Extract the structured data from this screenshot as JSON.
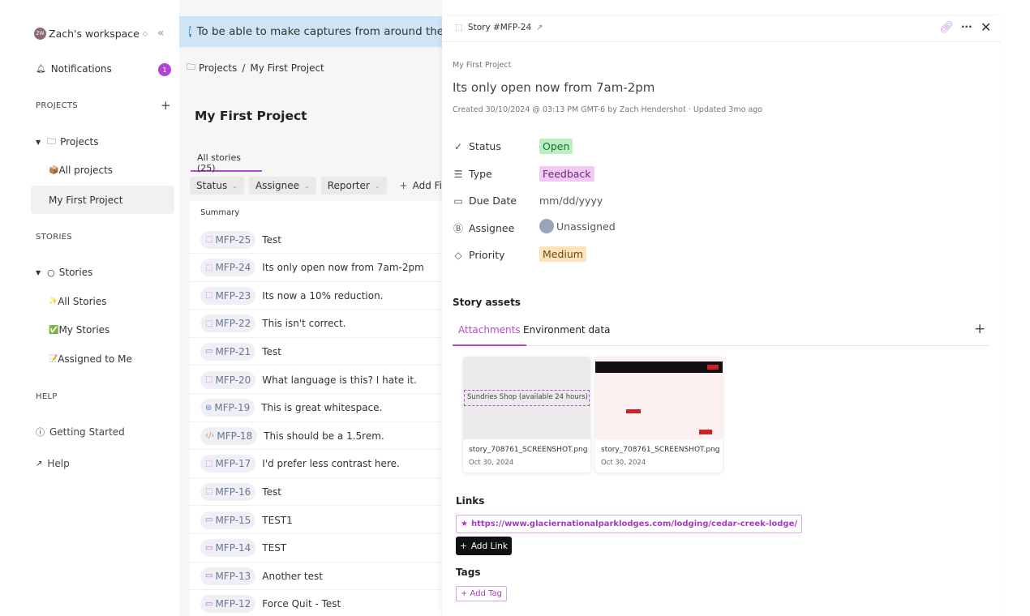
{
  "sidebar": {
    "workspace": {
      "avatar": "ZW",
      "name": "Zach's workspace"
    },
    "notifications": {
      "label": "Notifications",
      "count": "1"
    },
    "projects_heading": "PROJECTS",
    "projects_group": "Projects",
    "projects_items": [
      {
        "icon": "📦",
        "label": "All projects"
      },
      {
        "label": "My First Project"
      }
    ],
    "stories_heading": "STORIES",
    "stories_group": "Stories",
    "stories_items": [
      {
        "icon": "✨",
        "label": "All Stories"
      },
      {
        "icon": "✅",
        "label": "My Stories"
      },
      {
        "icon": "📝",
        "label": "Assigned to Me"
      }
    ],
    "help_heading": "HELP",
    "help_items": [
      {
        "label": "Getting Started"
      },
      {
        "label": "Help"
      }
    ]
  },
  "main": {
    "banner": "To be able to make captures from around the web",
    "breadcrumb": {
      "root": "Projects",
      "sep": "/",
      "current": "My First Project"
    },
    "title": "My First Project",
    "tab": "All stories (25)",
    "filters": [
      "Status",
      "Assignee",
      "Reporter"
    ],
    "add_filter": "Add Filter",
    "column_summary": "Summary",
    "rows": [
      {
        "id": "MFP-25",
        "summary": "Test",
        "kind": "feedback"
      },
      {
        "id": "MFP-24",
        "summary": "Its only open now from 7am-2pm",
        "kind": "feedback"
      },
      {
        "id": "MFP-23",
        "summary": "Its now a 10% reduction.",
        "kind": "feedback"
      },
      {
        "id": "MFP-22",
        "summary": "This isn't correct.",
        "kind": "feedback"
      },
      {
        "id": "MFP-21",
        "summary": "Test",
        "kind": "video"
      },
      {
        "id": "MFP-20",
        "summary": "What language is this? I hate it.",
        "kind": "feedback"
      },
      {
        "id": "MFP-19",
        "summary": "This is great whitespace.",
        "kind": "note"
      },
      {
        "id": "MFP-18",
        "summary": "This should be a 1.5rem.",
        "kind": "code"
      },
      {
        "id": "MFP-17",
        "summary": "I'd prefer less contrast here.",
        "kind": "feedback"
      },
      {
        "id": "MFP-16",
        "summary": "Test",
        "kind": "feedback"
      },
      {
        "id": "MFP-15",
        "summary": "TEST1",
        "kind": "video"
      },
      {
        "id": "MFP-14",
        "summary": "TEST",
        "kind": "video"
      },
      {
        "id": "MFP-13",
        "summary": "Another test",
        "kind": "video"
      },
      {
        "id": "MFP-12",
        "summary": "Force Quit - Test",
        "kind": "video"
      }
    ]
  },
  "panel": {
    "header": "Story #MFP-24",
    "project": "My First Project",
    "title": "Its only open now from 7am-2pm",
    "meta": "Created 30/10/2024 @ 03:13 PM GMT-6 by Zach Hendershot · Updated 3mo ago",
    "props": [
      {
        "label": "Status",
        "value": "Open",
        "color": "#b8f0c4"
      },
      {
        "label": "Type",
        "value": "Feedback",
        "color": "#f2c8f5"
      },
      {
        "label": "Due Date",
        "value": "mm/dd/yyyy"
      },
      {
        "label": "Assignee",
        "value": "Unassigned"
      },
      {
        "label": "Priority",
        "value": "Medium",
        "color": "#fde4b8"
      }
    ],
    "assets_heading": "Story assets",
    "tabs": [
      "Attachments",
      "Environment data"
    ],
    "attachments": [
      {
        "name": "story_708761_SCREENSHOT.png",
        "date": "Oct 30, 2024",
        "preview_text": "Sundries Shop (available 24 hours)"
      },
      {
        "name": "story_708761_SCREENSHOT.png",
        "date": "Oct 30, 2024"
      }
    ],
    "links_heading": "Links",
    "link": "https://www.glaciernationalparklodges.com/lodging/cedar-creek-lodge/",
    "add_link": "Add Link",
    "tags_heading": "Tags",
    "add_tag": "+ Add Tag"
  },
  "colors": {
    "accent": "#b44cc9",
    "banner": "#cfe5f6"
  }
}
